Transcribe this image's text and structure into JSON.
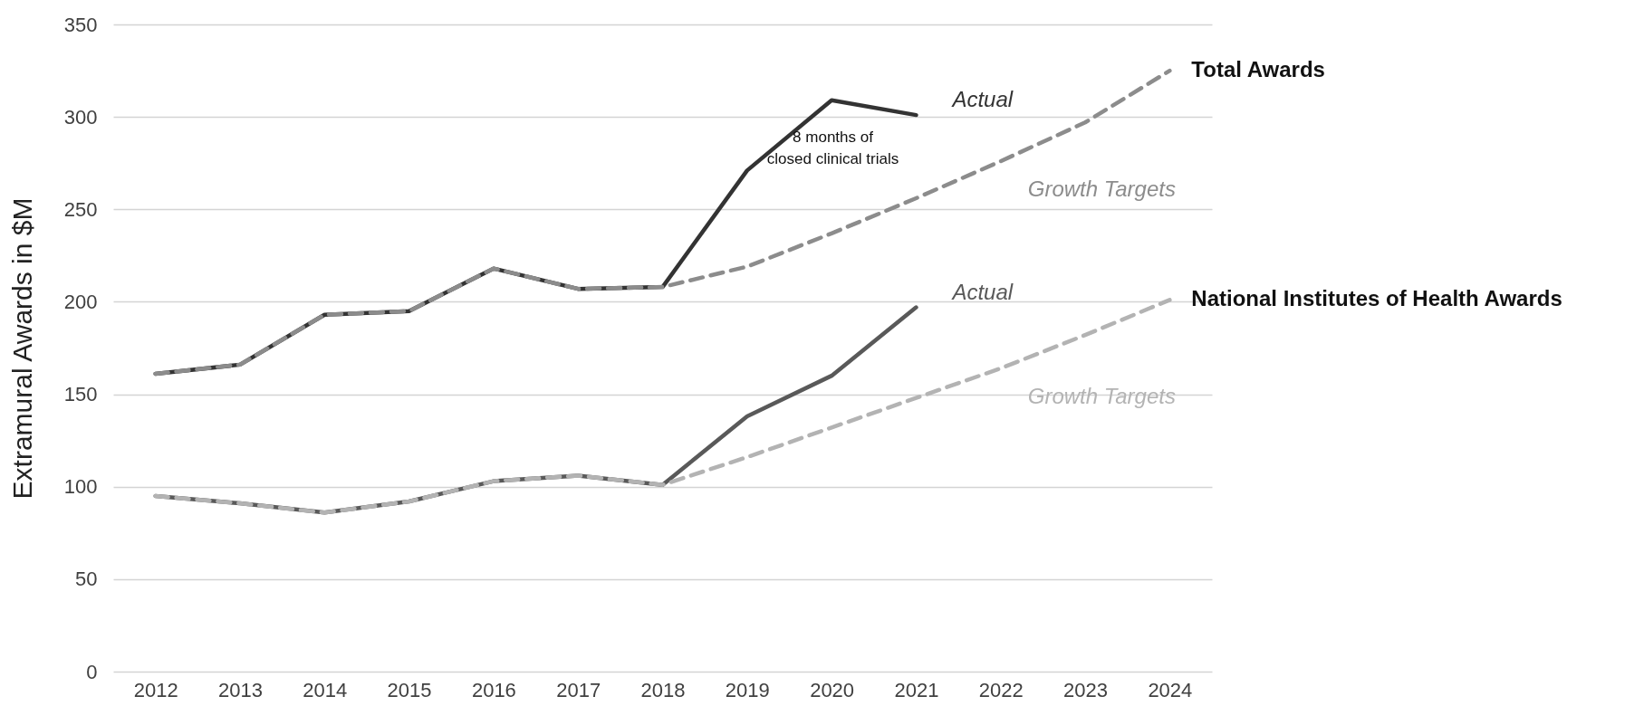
{
  "chart_data": {
    "type": "line",
    "ylabel": "Extramural Awards in $M",
    "categories": [
      "2012",
      "2013",
      "2014",
      "2015",
      "2016",
      "2017",
      "2018",
      "2019",
      "2020",
      "2021",
      "2022",
      "2023",
      "2024"
    ],
    "ylim": [
      0,
      350
    ],
    "yticks": [
      0,
      50,
      100,
      150,
      200,
      250,
      300,
      350
    ],
    "grid": "y",
    "legend": false,
    "marker": "none",
    "series": [
      {
        "name": "Actual",
        "color": "#333333",
        "line_style": "solid",
        "values": [
          161,
          166,
          193,
          195,
          218,
          207,
          208,
          271,
          309,
          301,
          null,
          null,
          null
        ]
      },
      {
        "name": "Growth Targets",
        "color": "#8c8c8c",
        "line_style": "dashed",
        "values": [
          161,
          166,
          193,
          195,
          218,
          207,
          208,
          219,
          237,
          256,
          276,
          297,
          325
        ]
      },
      {
        "name": "Actual",
        "color": "#595959",
        "line_style": "solid",
        "values": [
          95,
          91,
          86,
          92,
          103,
          106,
          101,
          138,
          160,
          197,
          null,
          null,
          null
        ]
      },
      {
        "name": "Growth Targets",
        "color": "#b3b3b3",
        "line_style": "dashed",
        "values": [
          95,
          91,
          86,
          92,
          103,
          106,
          101,
          116,
          132,
          148,
          164,
          182,
          201
        ]
      }
    ],
    "annotations": [
      {
        "text": "Total Awards",
        "x": "2024",
        "y": 325
      },
      {
        "text": "National Institutes of Health Awards",
        "x": "2024",
        "y": 201
      },
      "8 months of\nclosed clinical trials"
    ]
  }
}
